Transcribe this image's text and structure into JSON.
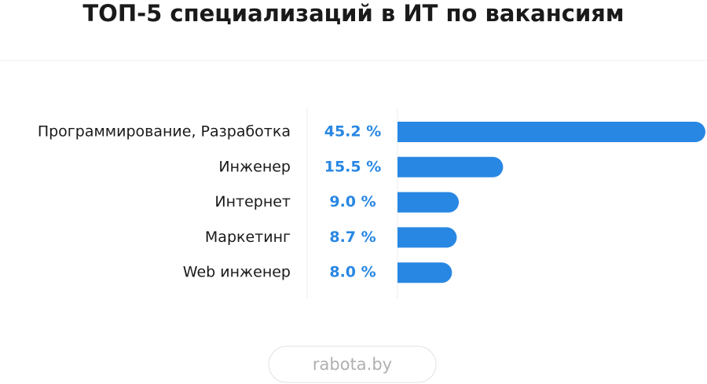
{
  "chart_data": {
    "type": "bar",
    "orientation": "horizontal",
    "title": "ТОП-5 специализаций в ИТ по вакансиям",
    "categories": [
      "Программирование, Разработка",
      "Инженер",
      "Интернет",
      "Маркетинг",
      "Web инженер"
    ],
    "values": [
      45.2,
      15.5,
      9.0,
      8.7,
      8.0
    ],
    "value_labels": [
      "45.2 %",
      "15.5 %",
      "9.0 %",
      "8.7 %",
      "8.0 %"
    ],
    "color": "#2887e3",
    "source": "rabota.by"
  }
}
